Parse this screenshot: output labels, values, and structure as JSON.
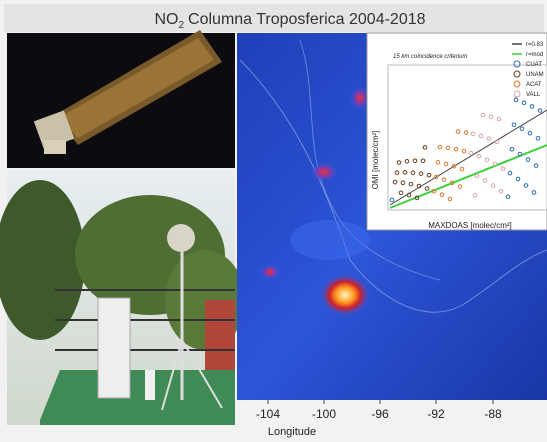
{
  "header": {
    "title": {
      "main": "NO",
      "sub": "2",
      "rest": "Columna Troposferica 2004-2018"
    }
  },
  "map": {
    "x_ticks": [
      "-104",
      "-100",
      "-96",
      "-92",
      "-88"
    ],
    "x_label": "Longitude"
  },
  "inset": {
    "note": "15 km coincidence criterium",
    "legend": [
      "r=0.83",
      "r=mod",
      "CUAT",
      "UNAM",
      "ACAT",
      "VALL"
    ],
    "y_label": "OMI [molec/cm²]",
    "x_label": "MAXDOAS [molec/cm²]"
  }
}
